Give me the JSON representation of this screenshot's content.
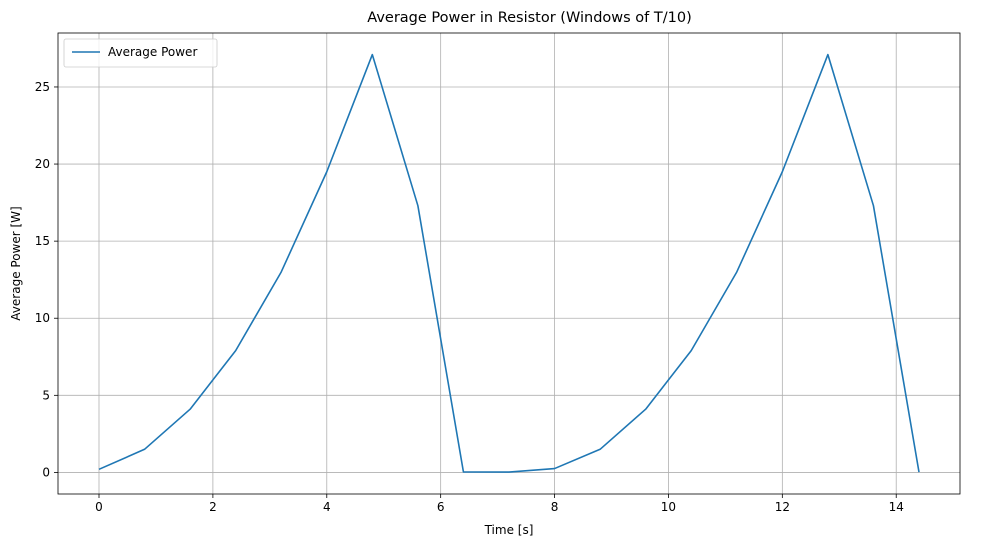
{
  "chart_data": {
    "type": "line",
    "title": "Average Power in Resistor (Windows of T/10)",
    "xlabel": "Time [s]",
    "ylabel": "Average Power [W]",
    "xlim": [
      -0.72,
      15.12
    ],
    "ylim": [
      -1.4,
      28.5
    ],
    "xticks": [
      0,
      2,
      4,
      6,
      8,
      10,
      12,
      14
    ],
    "yticks": [
      0,
      5,
      10,
      15,
      20,
      25
    ],
    "grid": true,
    "legend_position": "top-left",
    "series": [
      {
        "name": "Average Power",
        "color": "#1f77b4",
        "x": [
          0,
          0.8,
          1.6,
          2.4,
          3.2,
          4.0,
          4.8,
          5.6,
          6.4,
          7.2,
          8.0,
          8.8,
          9.6,
          10.4,
          11.2,
          12.0,
          12.8,
          13.6,
          14.4
        ],
        "y": [
          0.2,
          1.5,
          4.1,
          7.9,
          13.0,
          19.5,
          27.1,
          17.3,
          0.03,
          0.02,
          0.25,
          1.5,
          4.1,
          7.9,
          13.0,
          19.5,
          27.1,
          17.3,
          0.02
        ]
      }
    ]
  }
}
